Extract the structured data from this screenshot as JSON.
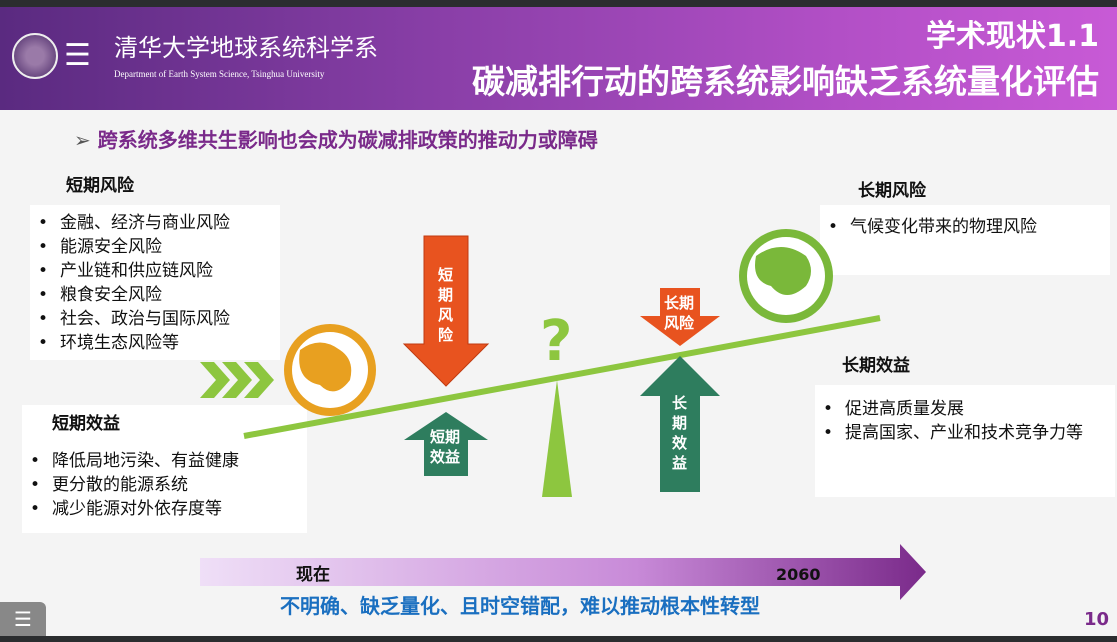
{
  "header": {
    "dept_cn": "清华大学地球系统科学系",
    "dept_en": "Department of Earth System Science, Tsinghua University",
    "title_line1": "学术现状1.1",
    "title_line2": "碳减排行动的跨系统影响缺乏系统量化评估"
  },
  "subtitle": "跨系统多维共生影响也会成为碳减排政策的推动力或障碍",
  "short_risk": {
    "heading": "短期风险",
    "items": [
      "金融、经济与商业风险",
      "能源安全风险",
      "产业链和供应链风险",
      "粮食安全风险",
      "社会、政治与国际风险",
      "环境生态风险等"
    ]
  },
  "short_benefit": {
    "heading": "短期效益",
    "items": [
      "降低局地污染、有益健康",
      "更分散的能源系统",
      "减少能源对外依存度等"
    ]
  },
  "long_risk": {
    "heading": "长期风险",
    "items": [
      "气候变化带来的物理风险"
    ]
  },
  "long_benefit": {
    "heading": "长期效益",
    "items": [
      "促进高质量发展",
      "提高国家、产业和技术竞争力等"
    ]
  },
  "diagram": {
    "arrow_short_risk": [
      "短",
      "期",
      "风",
      "险"
    ],
    "arrow_short_benefit": [
      "短期",
      "效益"
    ],
    "arrow_long_risk": [
      "长期",
      "风险"
    ],
    "arrow_long_benefit": [
      "长",
      "期",
      "效",
      "益"
    ],
    "question": "?"
  },
  "timeline": {
    "start": "现在",
    "end": "2060"
  },
  "footer": "不明确、缺乏量化、且时空错配，难以推动根本性转型",
  "page_number": "10",
  "colors": {
    "risk_arrow": "#e8531f",
    "benefit_arrow": "#2e7d5e",
    "lever": "#8dc63f",
    "globe_left": "#e8a020",
    "globe_right": "#7ab83a",
    "accent": "#7a2a8a"
  }
}
